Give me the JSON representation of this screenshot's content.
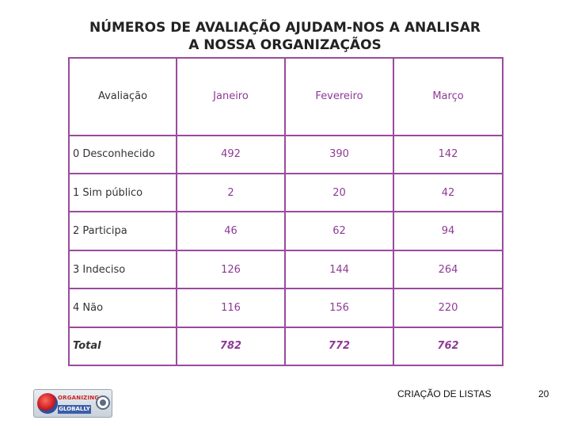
{
  "title": {
    "line1": "NÚMEROS DE AVALIAÇÃO AJUDAM-NOS A ANALISAR",
    "line2": "A NOSSA ORGANIZAÇÃOS"
  },
  "table": {
    "headers": [
      "Avaliação",
      "Janeiro",
      "Fevereiro",
      "Março"
    ],
    "rows": [
      {
        "label": "0 Desconhecido",
        "values": [
          "492",
          "390",
          "142"
        ]
      },
      {
        "label": "1 Sim público",
        "values": [
          "2",
          "20",
          "42"
        ]
      },
      {
        "label": "2 Participa",
        "values": [
          "46",
          "62",
          "94"
        ]
      },
      {
        "label": "3 Indeciso",
        "values": [
          "126",
          "144",
          "264"
        ]
      },
      {
        "label": "4 Não",
        "values": [
          "116",
          "156",
          "220"
        ]
      }
    ],
    "total": {
      "label": "Total",
      "values": [
        "782",
        "772",
        "762"
      ]
    }
  },
  "logo": {
    "line1": "ORGANIZING",
    "line2": "GLOBALLY"
  },
  "footer": {
    "text": "CRIAÇÃO DE LISTAS",
    "page": "20"
  },
  "colors": {
    "accent": "#8e3a96",
    "border": "#9b4a9e",
    "text": "#333333"
  }
}
